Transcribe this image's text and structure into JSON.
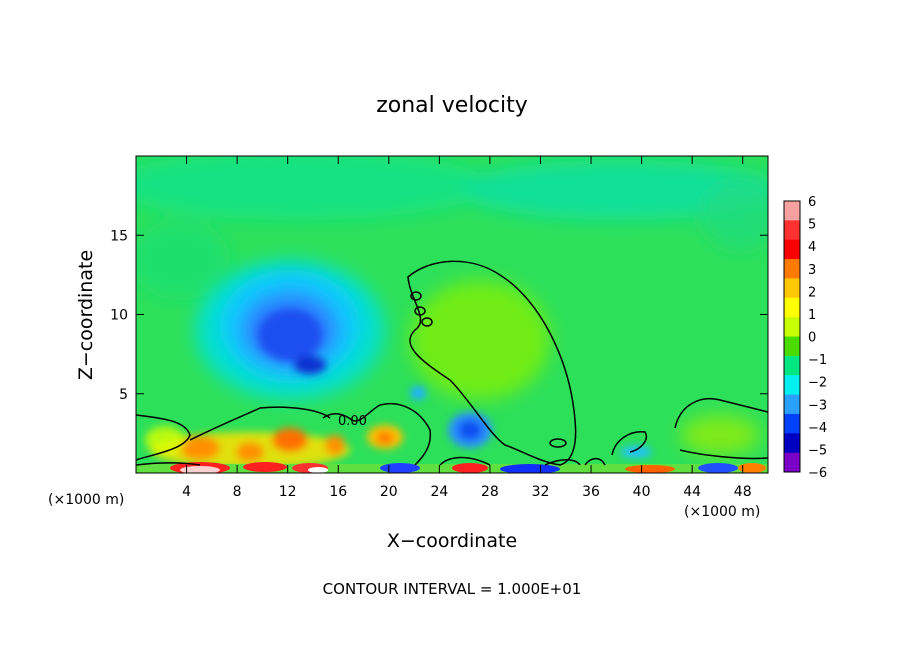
{
  "chart_data": {
    "type": "heatmap",
    "title": "zonal velocity",
    "xlabel": "X−coordinate",
    "ylabel": "Z−coordinate",
    "x_unit_left": "(×1000 m)",
    "x_unit_right": "(×1000 m)",
    "footer": "CONTOUR INTERVAL = 1.000E+01",
    "xlim": [
      0,
      50
    ],
    "ylim": [
      0,
      20
    ],
    "x_ticks": [
      4,
      8,
      12,
      16,
      20,
      24,
      28,
      32,
      36,
      40,
      44,
      48
    ],
    "y_ticks": [
      5,
      10,
      15
    ],
    "colorbar": {
      "levels": [
        6,
        5,
        4,
        3,
        2,
        1,
        0,
        -1,
        -2,
        -3,
        -4,
        -5,
        -6
      ],
      "colors": [
        "#f7a0a0",
        "#ff3030",
        "#ff0000",
        "#ff7a00",
        "#ffc800",
        "#ffff00",
        "#c8ff00",
        "#4cdd00",
        "#00e680",
        "#00f0f0",
        "#2aa0ff",
        "#0040ff",
        "#0000c0",
        "#7a00c8"
      ]
    },
    "features": [
      {
        "type": "min",
        "x": 13,
        "z": 8,
        "value": -4
      },
      {
        "type": "min",
        "x": 26,
        "z": 2.5,
        "value": -3
      },
      {
        "type": "max",
        "x": 28,
        "z": 9,
        "value": 1
      },
      {
        "type": "max",
        "x": 11,
        "z": 1.5,
        "value": 3
      }
    ],
    "contour_value": 0
  }
}
